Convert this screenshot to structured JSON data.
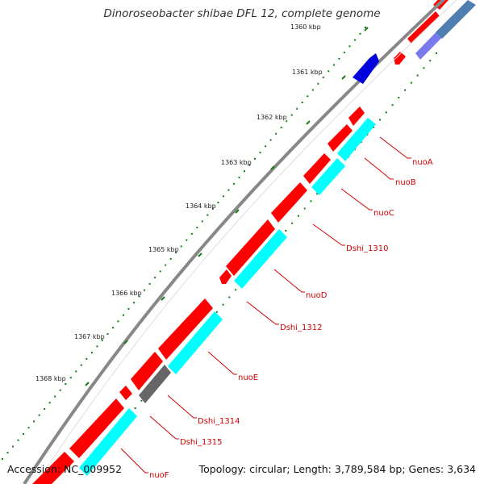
{
  "title": "Dinoroseobacter shibae DFL 12, complete genome",
  "footer": {
    "accession": "Accession: NC_009952",
    "summary": "Topology: circular; Length: 3,789,584 bp; Genes: 3,634"
  },
  "ticks": [
    {
      "label": "1360 kbp"
    },
    {
      "label": "1361 kbp"
    },
    {
      "label": "1362 kbp"
    },
    {
      "label": "1363 kbp"
    },
    {
      "label": "1364 kbp"
    },
    {
      "label": "1365 kbp"
    },
    {
      "label": "1366 kbp"
    },
    {
      "label": "1367 kbp"
    },
    {
      "label": "1368 kbp"
    }
  ],
  "gene_labels": [
    "nuoA",
    "nuoB",
    "nuoC",
    "Dshi_1310",
    "nuoD",
    "Dshi_1312",
    "nuoE",
    "Dshi_1314",
    "Dshi_1315",
    "nuoF"
  ],
  "colors": {
    "cds": "#ff0000",
    "rna_gene": "#00ffff",
    "other_gene": "#666666",
    "forward_feature": "#0000dd",
    "label": "#d40000",
    "backbone": "#888888",
    "tick": "#1a7a1a"
  }
}
